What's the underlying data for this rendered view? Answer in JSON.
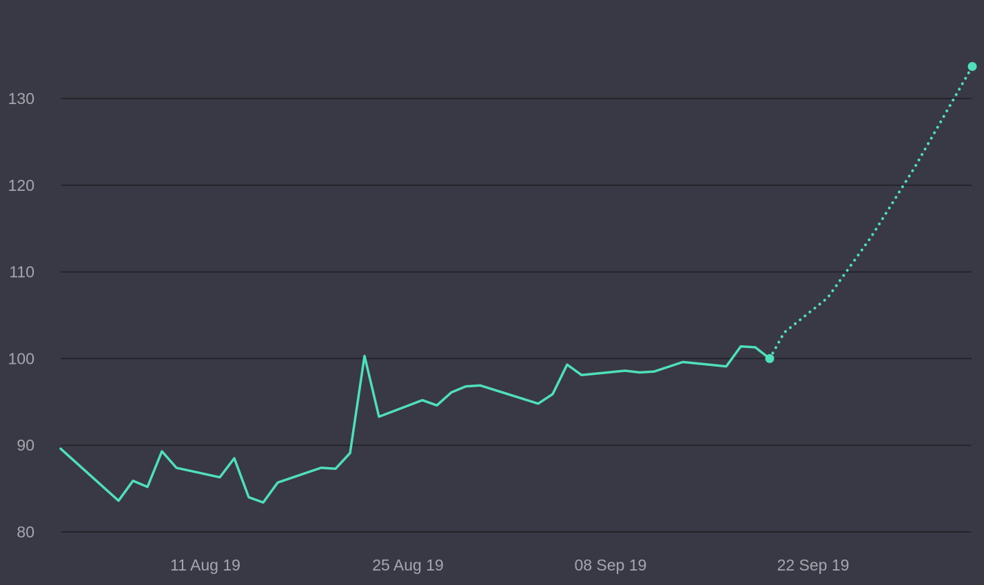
{
  "colors": {
    "background": "#393945",
    "grid": "#24242c",
    "tick_text": "#a6a6b0",
    "series": "#4fe0b9"
  },
  "chart_data": {
    "type": "line",
    "title": "",
    "xlabel": "",
    "ylabel": "",
    "grid": true,
    "legend": "none",
    "xlim": [
      "2019-08-01",
      "2019-10-04"
    ],
    "ylim": [
      80,
      135
    ],
    "yticks": [
      80,
      90,
      100,
      110,
      120,
      130
    ],
    "xticks": [
      {
        "date": "2019-08-11",
        "label": "11 Aug 19"
      },
      {
        "date": "2019-08-25",
        "label": "25 Aug 19"
      },
      {
        "date": "2019-09-08",
        "label": "08 Sep 19"
      },
      {
        "date": "2019-09-22",
        "label": "22 Sep 19"
      }
    ],
    "series": [
      {
        "style": "solid",
        "points": [
          {
            "x": "2019-08-01",
            "y": 89.6
          },
          {
            "x": "2019-08-05",
            "y": 83.6
          },
          {
            "x": "2019-08-06",
            "y": 85.9
          },
          {
            "x": "2019-08-07",
            "y": 85.2
          },
          {
            "x": "2019-08-08",
            "y": 89.3
          },
          {
            "x": "2019-08-09",
            "y": 87.4
          },
          {
            "x": "2019-08-12",
            "y": 86.3
          },
          {
            "x": "2019-08-13",
            "y": 88.5
          },
          {
            "x": "2019-08-14",
            "y": 84.0
          },
          {
            "x": "2019-08-15",
            "y": 83.4
          },
          {
            "x": "2019-08-16",
            "y": 85.7
          },
          {
            "x": "2019-08-19",
            "y": 87.4
          },
          {
            "x": "2019-08-20",
            "y": 87.3
          },
          {
            "x": "2019-08-21",
            "y": 89.1
          },
          {
            "x": "2019-08-22",
            "y": 100.3
          },
          {
            "x": "2019-08-23",
            "y": 93.3
          },
          {
            "x": "2019-08-26",
            "y": 95.2
          },
          {
            "x": "2019-08-27",
            "y": 94.6
          },
          {
            "x": "2019-08-28",
            "y": 96.1
          },
          {
            "x": "2019-08-29",
            "y": 96.8
          },
          {
            "x": "2019-08-30",
            "y": 96.9
          },
          {
            "x": "2019-09-03",
            "y": 94.8
          },
          {
            "x": "2019-09-04",
            "y": 95.9
          },
          {
            "x": "2019-09-05",
            "y": 99.3
          },
          {
            "x": "2019-09-06",
            "y": 98.1
          },
          {
            "x": "2019-09-09",
            "y": 98.6
          },
          {
            "x": "2019-09-10",
            "y": 98.4
          },
          {
            "x": "2019-09-11",
            "y": 98.5
          },
          {
            "x": "2019-09-13",
            "y": 99.6
          },
          {
            "x": "2019-09-16",
            "y": 99.1
          },
          {
            "x": "2019-09-17",
            "y": 101.4
          },
          {
            "x": "2019-09-18",
            "y": 101.3
          },
          {
            "x": "2019-09-19",
            "y": 100.0
          }
        ]
      },
      {
        "style": "dotted",
        "points": [
          {
            "x": "2019-09-19",
            "y": 100.0
          },
          {
            "x": "2019-09-20",
            "y": 103.0
          },
          {
            "x": "2019-09-23",
            "y": 107.0
          },
          {
            "x": "2019-09-26",
            "y": 114.0
          },
          {
            "x": "2019-09-29",
            "y": 122.0
          },
          {
            "x": "2019-10-03",
            "y": 133.7
          }
        ]
      }
    ]
  }
}
